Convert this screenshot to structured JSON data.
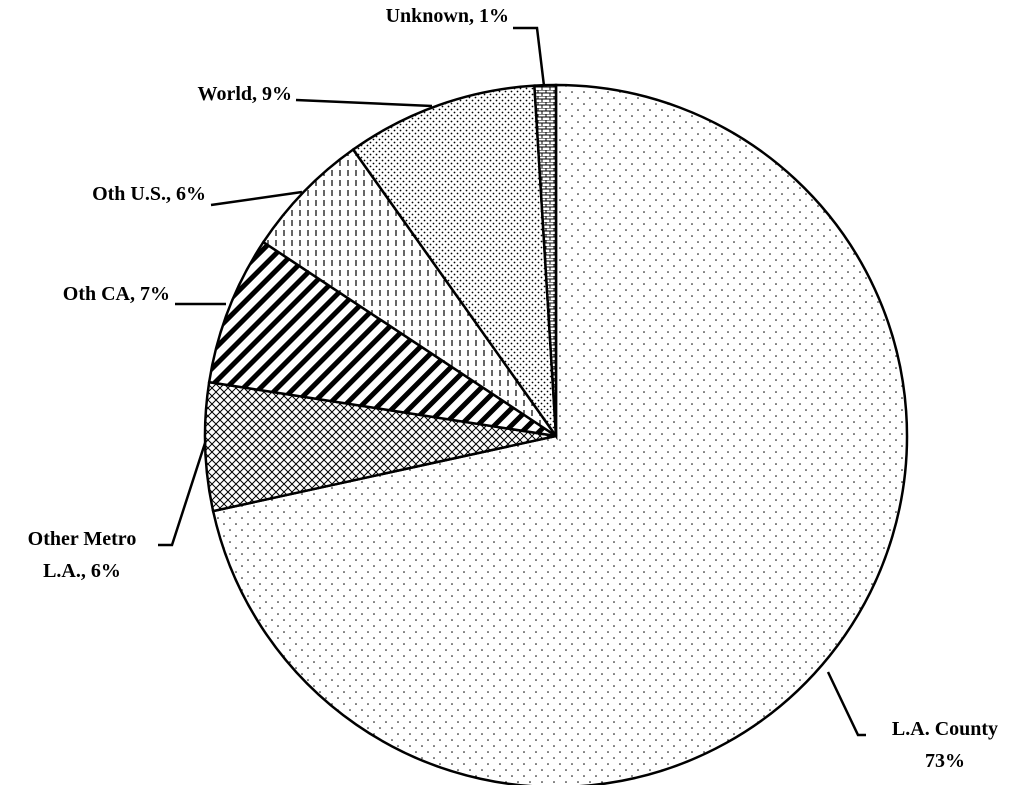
{
  "chart_data": {
    "type": "pie",
    "values": [
      73,
      6,
      7,
      6,
      9,
      1
    ],
    "value_labels": [
      "L.A. County\n73%",
      "Other Metro\nL.A., 6%",
      "Oth CA, 7%",
      "Oth U.S., 6%",
      "World, 9%",
      "Unknown, 1%"
    ],
    "patterns": [
      "dots-sparse",
      "crosshatch",
      "diagonal",
      "vertical-dash",
      "dots-dense",
      "brick"
    ],
    "color": "#000000",
    "start_angle": 0,
    "direction": "clockwise"
  }
}
